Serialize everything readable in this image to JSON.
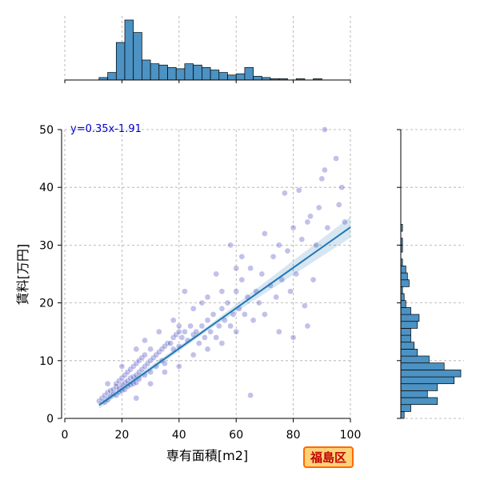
{
  "chart_data": {
    "type": "scatter",
    "title": "",
    "xlabel": "専有面積[m2]",
    "ylabel": "賃料[万円]",
    "xlim": [
      0,
      100
    ],
    "ylim": [
      0,
      50
    ],
    "x_ticks": [
      "0",
      "20",
      "40",
      "60",
      "80",
      "100"
    ],
    "y_ticks": [
      "0",
      "10",
      "20",
      "30",
      "40",
      "50"
    ],
    "grid": true,
    "regression": {
      "label": "y=0.35x-1.91",
      "slope": 0.35,
      "intercept": -1.91,
      "x_range": [
        12,
        100
      ],
      "color": "#1f77b4"
    },
    "point_color": "#3333bb",
    "hist_color": "#4c92c3",
    "points": [
      [
        12,
        3
      ],
      [
        13,
        3.5
      ],
      [
        14,
        4
      ],
      [
        14,
        2.8
      ],
      [
        15,
        3.2
      ],
      [
        15,
        4.5
      ],
      [
        16,
        4.8
      ],
      [
        16,
        3.8
      ],
      [
        17,
        5
      ],
      [
        17,
        4.2
      ],
      [
        18,
        5.5
      ],
      [
        18,
        4
      ],
      [
        18,
        6
      ],
      [
        19,
        5.2
      ],
      [
        19,
        6.5
      ],
      [
        19,
        4.5
      ],
      [
        20,
        5.8
      ],
      [
        20,
        7
      ],
      [
        20,
        4.8
      ],
      [
        21,
        6.2
      ],
      [
        21,
        7.5
      ],
      [
        21,
        5
      ],
      [
        22,
        6.5
      ],
      [
        22,
        8
      ],
      [
        22,
        5.5
      ],
      [
        23,
        7
      ],
      [
        23,
        8.5
      ],
      [
        23,
        5.8
      ],
      [
        24,
        7.2
      ],
      [
        24,
        9
      ],
      [
        24,
        6
      ],
      [
        25,
        7.5
      ],
      [
        25,
        9.5
      ],
      [
        25,
        6.2
      ],
      [
        26,
        8
      ],
      [
        26,
        10
      ],
      [
        26,
        6.8
      ],
      [
        27,
        8.5
      ],
      [
        27,
        10.5
      ],
      [
        28,
        9
      ],
      [
        28,
        11
      ],
      [
        28,
        7.5
      ],
      [
        29,
        9.5
      ],
      [
        30,
        10
      ],
      [
        30,
        12
      ],
      [
        30,
        8
      ],
      [
        31,
        10.5
      ],
      [
        32,
        11
      ],
      [
        32,
        9
      ],
      [
        33,
        11.5
      ],
      [
        34,
        12
      ],
      [
        34,
        10
      ],
      [
        35,
        12.5
      ],
      [
        35,
        9.5
      ],
      [
        36,
        13
      ],
      [
        37,
        13
      ],
      [
        38,
        14
      ],
      [
        38,
        12
      ],
      [
        39,
        14.5
      ],
      [
        40,
        15
      ],
      [
        40,
        12.5
      ],
      [
        40,
        16
      ],
      [
        41,
        14
      ],
      [
        42,
        15
      ],
      [
        43,
        13.5
      ],
      [
        44,
        16
      ],
      [
        45,
        14.5
      ],
      [
        45,
        11
      ],
      [
        46,
        15
      ],
      [
        47,
        13
      ],
      [
        48,
        16
      ],
      [
        49,
        14
      ],
      [
        50,
        17
      ],
      [
        50,
        12
      ],
      [
        51,
        15
      ],
      [
        52,
        18
      ],
      [
        53,
        14
      ],
      [
        54,
        16
      ],
      [
        55,
        19
      ],
      [
        55,
        13
      ],
      [
        56,
        17
      ],
      [
        57,
        20
      ],
      [
        58,
        16
      ],
      [
        59,
        18
      ],
      [
        60,
        22
      ],
      [
        60,
        15
      ],
      [
        61,
        19
      ],
      [
        62,
        24
      ],
      [
        63,
        18
      ],
      [
        64,
        21
      ],
      [
        65,
        26
      ],
      [
        65,
        4
      ],
      [
        66,
        17
      ],
      [
        67,
        22
      ],
      [
        68,
        20
      ],
      [
        69,
        25
      ],
      [
        70,
        18
      ],
      [
        72,
        23
      ],
      [
        73,
        28
      ],
      [
        74,
        21
      ],
      [
        75,
        30
      ],
      [
        76,
        24
      ],
      [
        77,
        39
      ],
      [
        78,
        29
      ],
      [
        79,
        22
      ],
      [
        80,
        33
      ],
      [
        81,
        25
      ],
      [
        82,
        39.5
      ],
      [
        83,
        31
      ],
      [
        84,
        19.5
      ],
      [
        85,
        34
      ],
      [
        86,
        35
      ],
      [
        87,
        24
      ],
      [
        88,
        30
      ],
      [
        89,
        36.5
      ],
      [
        90,
        41.5
      ],
      [
        91,
        43
      ],
      [
        91,
        50
      ],
      [
        92,
        33
      ],
      [
        95,
        45
      ],
      [
        96,
        37
      ],
      [
        97,
        40
      ],
      [
        98,
        34
      ],
      [
        25,
        3.5
      ],
      [
        30,
        6
      ],
      [
        35,
        8
      ],
      [
        40,
        9
      ],
      [
        45,
        19
      ],
      [
        50,
        21
      ],
      [
        55,
        22
      ],
      [
        60,
        26
      ],
      [
        62,
        28
      ],
      [
        70,
        32
      ],
      [
        75,
        15
      ],
      [
        80,
        14
      ],
      [
        85,
        16
      ],
      [
        15,
        6
      ],
      [
        20,
        9
      ],
      [
        25,
        12
      ],
      [
        28,
        13.5
      ],
      [
        33,
        15
      ],
      [
        38,
        17
      ],
      [
        42,
        22
      ],
      [
        48,
        20
      ],
      [
        53,
        25
      ],
      [
        58,
        30
      ]
    ],
    "top_hist": {
      "bin_start": 12,
      "bin_width": 3,
      "counts": [
        2,
        6,
        30,
        48,
        38,
        16,
        13,
        12,
        10,
        9,
        13,
        12,
        10,
        8,
        6,
        4,
        5,
        10,
        3,
        2,
        1,
        1,
        0,
        1,
        0,
        1,
        0,
        0,
        0,
        0
      ]
    },
    "right_hist": {
      "bin_start": 0,
      "bin_width": 1.2,
      "counts": [
        2,
        6,
        22,
        16,
        22,
        32,
        36,
        26,
        17,
        10,
        8,
        6,
        6,
        10,
        11,
        6,
        3,
        2,
        1,
        5,
        4,
        3,
        1,
        0,
        1,
        1,
        0,
        1,
        0,
        0,
        0,
        0,
        0,
        0,
        0,
        0,
        0,
        0,
        0,
        0,
        0,
        0
      ]
    },
    "badge": "福島区"
  }
}
